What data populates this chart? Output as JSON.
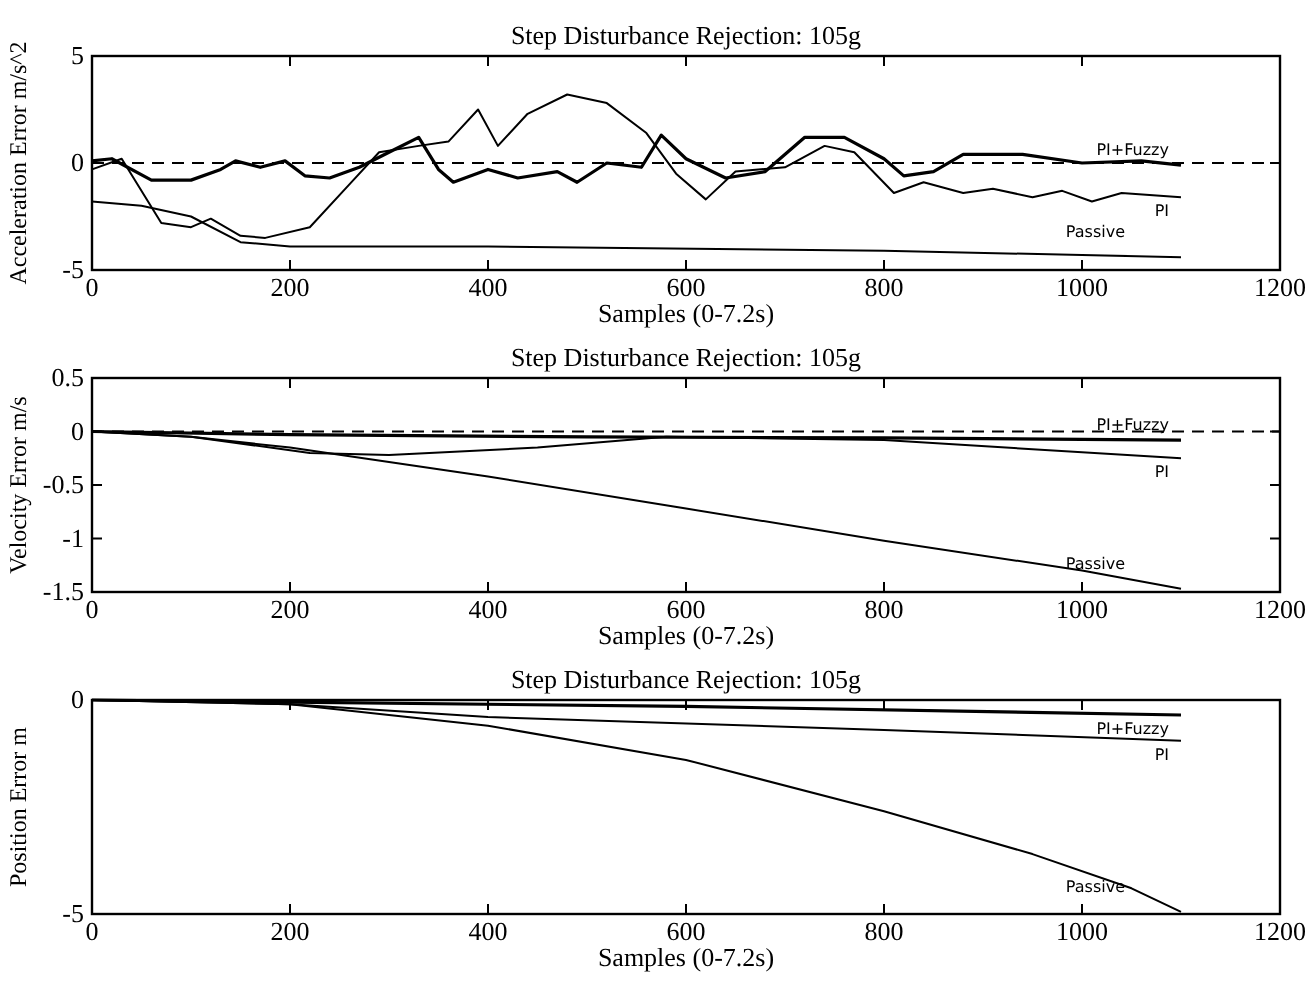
{
  "chart_data": [
    {
      "type": "line",
      "title": "Step Disturbance Rejection: 105g",
      "xlabel": "Samples (0-7.2s)",
      "ylabel": "Acceleration Error m/s^2",
      "xlim": [
        0,
        1200
      ],
      "xticks": [
        0,
        200,
        400,
        600,
        800,
        1000,
        1200
      ],
      "ylim": [
        -5,
        5
      ],
      "yticks": [
        -5,
        0,
        5
      ],
      "grid": false,
      "line_style": "solid",
      "ref_lines": [
        {
          "axis": "y",
          "value": 0,
          "line_style": "dashed",
          "label": null
        }
      ],
      "series": [
        {
          "name": "PI+Fuzzy",
          "color": "#000000",
          "x": [
            0,
            20,
            60,
            100,
            130,
            145,
            170,
            195,
            215,
            240,
            270,
            300,
            330,
            350,
            365,
            400,
            430,
            470,
            490,
            520,
            555,
            575,
            600,
            640,
            680,
            720,
            760,
            800,
            820,
            850,
            880,
            940,
            1000,
            1060,
            1100
          ],
          "values": [
            0.1,
            0.2,
            -0.8,
            -0.8,
            -0.3,
            0.1,
            -0.2,
            0.1,
            -0.6,
            -0.7,
            -0.2,
            0.5,
            1.2,
            -0.3,
            -0.9,
            -0.3,
            -0.7,
            -0.4,
            -0.9,
            0,
            -0.2,
            1.3,
            0.2,
            -0.7,
            -0.4,
            1.2,
            1.2,
            0.2,
            -0.6,
            -0.4,
            0.4,
            0.4,
            0,
            0.1,
            -0.1
          ]
        },
        {
          "name": "PI",
          "color": "#000000",
          "x": [
            0,
            30,
            70,
            100,
            120,
            150,
            175,
            220,
            260,
            290,
            330,
            360,
            390,
            410,
            440,
            480,
            520,
            560,
            590,
            620,
            650,
            700,
            740,
            770,
            810,
            840,
            880,
            910,
            950,
            980,
            1010,
            1040,
            1100
          ],
          "values": [
            -0.3,
            0.2,
            -2.8,
            -3,
            -2.6,
            -3.4,
            -3.5,
            -3,
            -1,
            0.5,
            0.8,
            1,
            2.5,
            0.8,
            2.3,
            3.2,
            2.8,
            1.4,
            -0.5,
            -1.7,
            -0.4,
            -0.2,
            0.8,
            0.5,
            -1.4,
            -0.9,
            -1.4,
            -1.2,
            -1.6,
            -1.3,
            -1.8,
            -1.4,
            -1.6
          ]
        },
        {
          "name": "Passive",
          "color": "#000000",
          "x": [
            0,
            50,
            100,
            150,
            200,
            400,
            800,
            1000,
            1100
          ],
          "values": [
            -1.8,
            -2,
            -2.5,
            -3.7,
            -3.9,
            -3.9,
            -4.1,
            -4.3,
            -4.4
          ]
        }
      ]
    },
    {
      "type": "line",
      "title": "Step Disturbance Rejection: 105g",
      "xlabel": "Samples (0-7.2s)",
      "ylabel": "Velocity Error m/s",
      "xlim": [
        0,
        1200
      ],
      "xticks": [
        0,
        200,
        400,
        600,
        800,
        1000,
        1200
      ],
      "ylim": [
        -1.5,
        0.5
      ],
      "yticks": [
        -1.5,
        -1,
        -0.5,
        0,
        0.5
      ],
      "grid": false,
      "line_style": "solid",
      "ref_lines": [
        {
          "axis": "y",
          "value": 0,
          "line_style": "dashed",
          "label": null
        }
      ],
      "series": [
        {
          "name": "PI+Fuzzy",
          "color": "#000000",
          "x": [
            0,
            200,
            500,
            800,
            1100
          ],
          "values": [
            0,
            -0.03,
            -0.05,
            -0.06,
            -0.08
          ]
        },
        {
          "name": "PI",
          "color": "#000000",
          "x": [
            0,
            100,
            220,
            300,
            450,
            580,
            800,
            1100
          ],
          "values": [
            0,
            -0.05,
            -0.2,
            -0.22,
            -0.15,
            -0.05,
            -0.08,
            -0.25
          ]
        },
        {
          "name": "Passive",
          "color": "#000000",
          "x": [
            0,
            100,
            200,
            400,
            600,
            800,
            1000,
            1100
          ],
          "values": [
            0,
            -0.05,
            -0.15,
            -0.42,
            -0.72,
            -1.02,
            -1.3,
            -1.47
          ]
        }
      ]
    },
    {
      "type": "line",
      "title": "Step Disturbance Rejection: 105g",
      "xlabel": "Samples (0-7.2s)",
      "ylabel": "Position Error m",
      "xlim": [
        0,
        1200
      ],
      "xticks": [
        0,
        200,
        400,
        600,
        800,
        1000,
        1200
      ],
      "ylim": [
        -5,
        0
      ],
      "yticks": [
        -5,
        0
      ],
      "grid": false,
      "line_style": "solid",
      "series": [
        {
          "name": "PI+Fuzzy",
          "color": "#000000",
          "x": [
            0,
            200,
            600,
            1100
          ],
          "values": [
            0,
            -0.05,
            -0.15,
            -0.35
          ]
        },
        {
          "name": "PI",
          "color": "#000000",
          "x": [
            0,
            200,
            400,
            800,
            1100
          ],
          "values": [
            0,
            -0.1,
            -0.4,
            -0.7,
            -0.95
          ]
        },
        {
          "name": "Passive",
          "color": "#000000",
          "x": [
            0,
            200,
            400,
            600,
            800,
            950,
            1050,
            1100
          ],
          "values": [
            0,
            -0.1,
            -0.6,
            -1.4,
            -2.6,
            -3.6,
            -4.4,
            -4.95
          ]
        }
      ]
    }
  ]
}
